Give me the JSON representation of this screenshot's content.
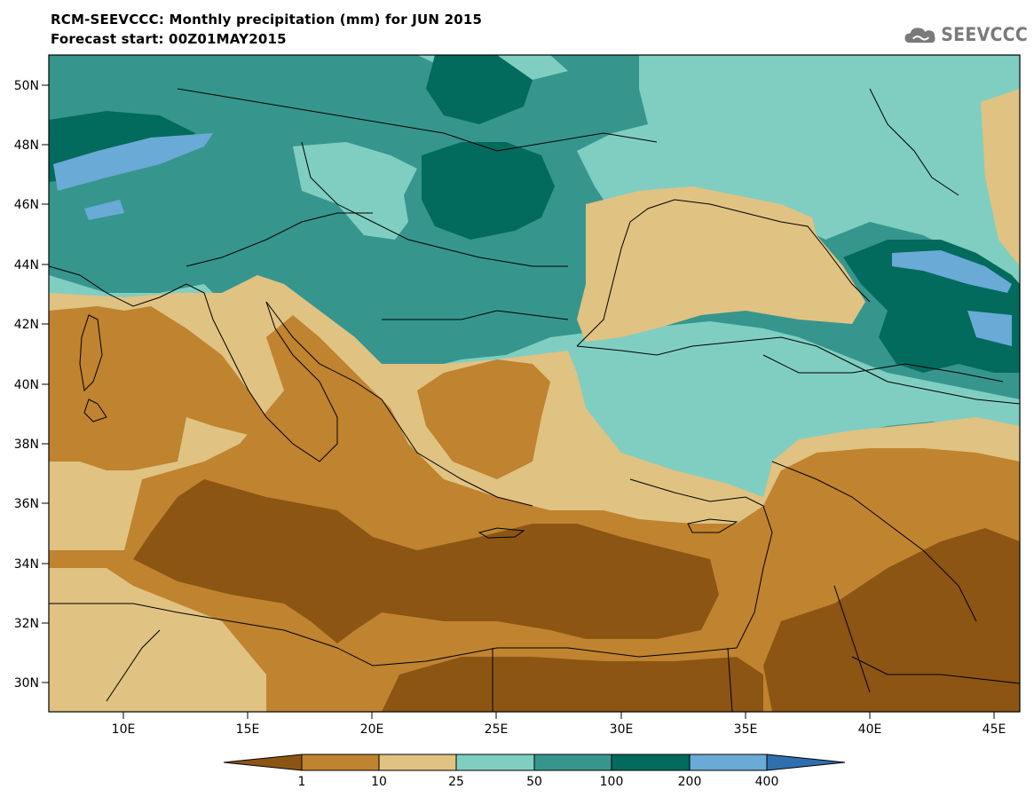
{
  "title": {
    "line1": "RCM-SEEVCCC: Monthly precipitation (mm) for JUN 2015",
    "line2": "Forecast start: 00Z01MAY2015"
  },
  "logo": {
    "text": "SEEVCCC",
    "icon": "cloud-icon",
    "color": "#7a7a7a"
  },
  "map": {
    "lon_range": [
      7,
      46
    ],
    "lat_range": [
      29,
      51
    ],
    "lat_labels": [
      "50N",
      "48N",
      "46N",
      "44N",
      "42N",
      "40N",
      "38N",
      "36N",
      "34N",
      "32N",
      "30N"
    ],
    "lon_labels": [
      "10E",
      "15E",
      "20E",
      "25E",
      "30E",
      "35E",
      "40E",
      "45E"
    ]
  },
  "legend": {
    "labels": [
      "1",
      "10",
      "25",
      "50",
      "100",
      "200",
      "400"
    ],
    "colors": [
      "#8c5514",
      "#c0832f",
      "#e0c282",
      "#80cec1",
      "#36968e",
      "#036a5e",
      "#6aaad6",
      "#2f6fae"
    ]
  }
}
